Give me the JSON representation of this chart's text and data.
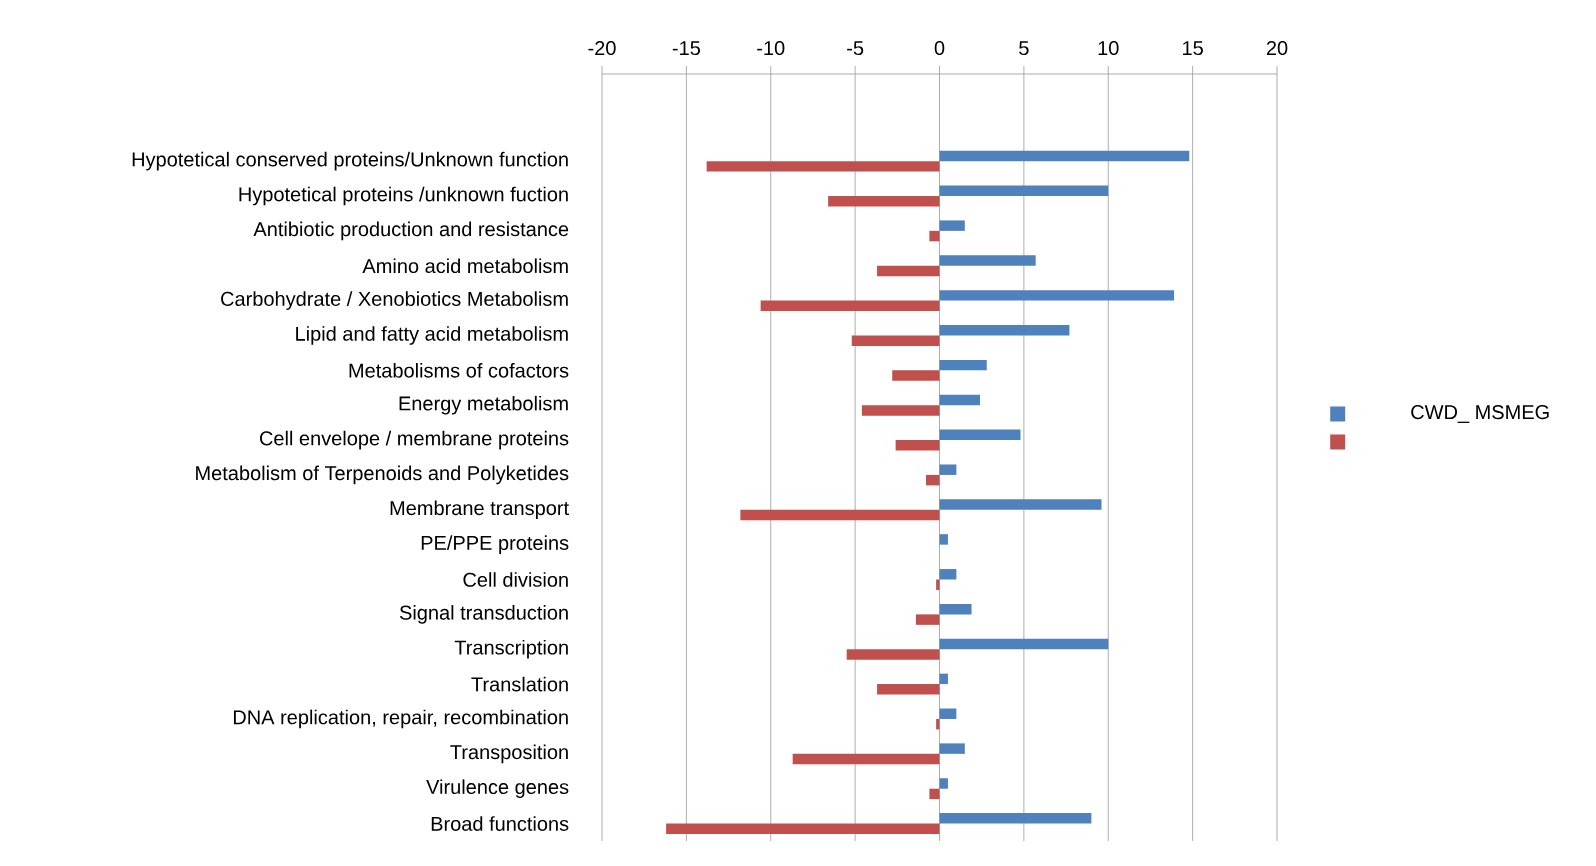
{
  "chart_data": {
    "type": "bar",
    "orientation": "horizontal",
    "categories": [
      null,
      "Hypotetical conserved proteins/Unknown function",
      "Hypotetical proteins /unknown fuction",
      "Antibiotic production and resistance",
      "Amino acid  metabolism",
      "Carbohydrate  / Xenobiotics  Metabolism",
      "Lipid and fatty acid metabolism",
      "Metabolisms of cofactors",
      "Energy metabolism",
      "Cell envelope / membrane proteins",
      "Metabolism of Terpenoids and Polyketides",
      "Membrane transport",
      "PE/PPE proteins",
      "Cell division",
      "Signal transduction",
      "Transcription",
      "Translation",
      "DNA replication, repair, recombination",
      "Transposition",
      "Virulence genes",
      "Broad functions"
    ],
    "series": [
      {
        "name": "CWD_ MSMEG",
        "color": "#4f81bd",
        "values": [
          null,
          14.8,
          10.0,
          1.5,
          5.7,
          13.9,
          7.7,
          2.8,
          2.4,
          4.8,
          1.0,
          9.6,
          0.5,
          1.0,
          1.9,
          10.0,
          0.5,
          1.0,
          1.5,
          0.5,
          9.0
        ]
      },
      {
        "color": "#c0504d",
        "values": [
          null,
          -13.8,
          -6.6,
          -0.6,
          -3.7,
          -10.6,
          -5.2,
          -2.8,
          -4.6,
          -2.6,
          -0.8,
          -11.8,
          null,
          -0.2,
          -1.4,
          -5.5,
          -3.7,
          -0.2,
          -8.7,
          -0.6,
          -16.2
        ]
      }
    ],
    "xlim": [
      -20,
      20
    ],
    "xticks": [
      -20,
      -15,
      -10,
      -5,
      0,
      5,
      10,
      15,
      20
    ],
    "grid": "x",
    "legend": "right"
  }
}
